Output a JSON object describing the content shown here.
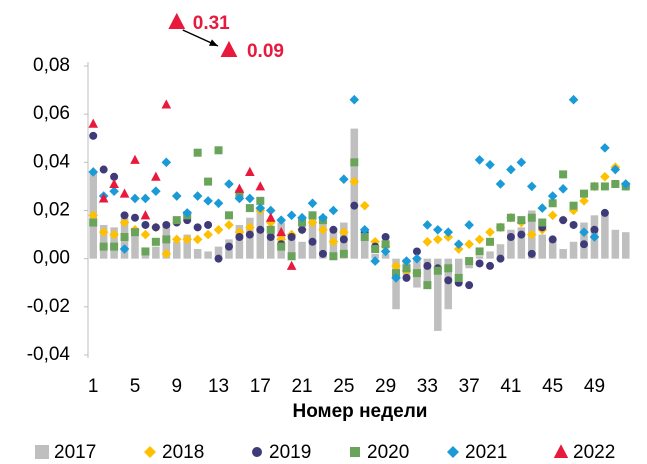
{
  "chart_data": {
    "type": "bar",
    "x_label": "Номер недели",
    "x": [
      1,
      2,
      3,
      4,
      5,
      6,
      7,
      8,
      9,
      10,
      11,
      12,
      13,
      14,
      15,
      16,
      17,
      18,
      19,
      20,
      21,
      22,
      23,
      24,
      25,
      26,
      27,
      28,
      29,
      30,
      31,
      32,
      33,
      34,
      35,
      36,
      37,
      38,
      39,
      40,
      41,
      42,
      43,
      44,
      45,
      46,
      47,
      48,
      49,
      50,
      51,
      52
    ],
    "xlim": [
      0.5,
      52.5
    ],
    "xticks": [
      1,
      5,
      9,
      13,
      17,
      21,
      25,
      29,
      33,
      37,
      41,
      45,
      49
    ],
    "ylim": [
      -0.04,
      0.08
    ],
    "yticks": [
      {
        "value": -0.04,
        "label": "-0,04"
      },
      {
        "value": -0.02,
        "label": "-0,02"
      },
      {
        "value": 0,
        "label": "0,00"
      },
      {
        "value": 0.02,
        "label": "0,02"
      },
      {
        "value": 0.04,
        "label": "0,04"
      },
      {
        "value": 0.06,
        "label": "0,06"
      },
      {
        "value": 0.08,
        "label": "0,08"
      }
    ],
    "grid": false,
    "legend": "bottom",
    "series": [
      {
        "name": "2017",
        "type": "bar",
        "marker": "square",
        "color": "#bfbfbf",
        "values": [
          0.036,
          0.014,
          0.013,
          0.017,
          0.011,
          0.004,
          0.005,
          0.014,
          0.007,
          0.01,
          0.004,
          0.003,
          0.005,
          0.008,
          0.014,
          0.017,
          0.02,
          0.011,
          0.015,
          0.01,
          0.007,
          0.018,
          0.015,
          0.012,
          0.015,
          0.054,
          0.009,
          0.002,
          0.002,
          -0.021,
          -0.008,
          -0.012,
          -0.01,
          -0.03,
          -0.021,
          -0.01,
          -0.004,
          0.001,
          0.003,
          0.006,
          0.012,
          0.013,
          0.02,
          0.01,
          0.008,
          0.004,
          0.007,
          0.015,
          0.018,
          0.019,
          0.012,
          0.011
        ]
      },
      {
        "name": "2018",
        "type": "scatter",
        "marker": "diamond",
        "color": "#ffc000",
        "values": [
          0.018,
          0.011,
          0.01,
          0.015,
          0.012,
          0.01,
          0.013,
          0.002,
          0.008,
          0.008,
          0.008,
          0.01,
          0.012,
          0.014,
          0.011,
          0.013,
          0.02,
          0.015,
          0.008,
          0.01,
          0.012,
          0.015,
          0.012,
          0.007,
          0.011,
          0.032,
          0.022,
          0.007,
          0.005,
          -0.003,
          -0.005,
          -0.006,
          0.007,
          0.008,
          0.009,
          0.004,
          0.006,
          0.008,
          0.011,
          0.013,
          0.017,
          0.015,
          0.01,
          0.012,
          0.018,
          0.016,
          0.02,
          0.024,
          0.03,
          0.034,
          0.038,
          0.031
        ]
      },
      {
        "name": "2019",
        "type": "scatter",
        "marker": "circle",
        "color": "#3f3a78",
        "values": [
          0.051,
          0.037,
          0.034,
          0.018,
          0.017,
          0.014,
          0.013,
          0.014,
          0.015,
          0.016,
          0.013,
          0.014,
          0.0,
          0.005,
          0.009,
          0.01,
          0.012,
          0.009,
          0.006,
          0.009,
          0.012,
          0.007,
          0.002,
          0.012,
          0.008,
          0.022,
          0.011,
          0.005,
          0.009,
          -0.007,
          -0.008,
          0.003,
          -0.003,
          -0.004,
          -0.009,
          -0.01,
          -0.011,
          -0.002,
          -0.003,
          0.0,
          0.009,
          0.01,
          0.002,
          0.013,
          0.008,
          0.016,
          0.014,
          0.006,
          0.012,
          0.019,
          0.031,
          0.03
        ]
      },
      {
        "name": "2020",
        "type": "scatter",
        "marker": "square",
        "color": "#6aa35a",
        "values": [
          0.015,
          0.005,
          0.005,
          0.009,
          0.011,
          0.003,
          0.007,
          0.008,
          0.016,
          0.018,
          0.044,
          0.032,
          0.045,
          0.018,
          0.027,
          0.021,
          0.024,
          0.012,
          0.005,
          0.001,
          0.015,
          0.018,
          0.016,
          0.001,
          0.002,
          0.04,
          0.009,
          0.004,
          0.006,
          -0.006,
          -0.004,
          -0.006,
          -0.011,
          -0.005,
          -0.004,
          -0.008,
          -0.001,
          0.003,
          0.007,
          0.013,
          0.017,
          0.016,
          0.017,
          0.015,
          0.023,
          0.035,
          0.022,
          0.027,
          0.03,
          0.03,
          0.031,
          0.03
        ]
      },
      {
        "name": "2021",
        "type": "scatter",
        "marker": "diamond",
        "color": "#1a9bd7",
        "values": [
          0.036,
          0.026,
          0.028,
          0.004,
          0.025,
          0.025,
          0.028,
          0.04,
          0.026,
          0.019,
          0.026,
          0.024,
          0.023,
          0.031,
          0.025,
          0.025,
          0.021,
          0.02,
          0.016,
          0.018,
          0.017,
          0.023,
          0.017,
          0.02,
          0.033,
          0.066,
          0.012,
          -0.001,
          0.003,
          -0.008,
          -0.001,
          0.0,
          0.014,
          0.012,
          0.011,
          0.006,
          0.014,
          0.041,
          0.039,
          0.031,
          0.037,
          0.04,
          0.03,
          0.021,
          0.026,
          0.029,
          0.066,
          0.011,
          0.009,
          0.046,
          0.037,
          0.031
        ]
      },
      {
        "name": "2022",
        "type": "scatter",
        "marker": "triangle",
        "color": "#e8193c",
        "values": [
          0.056,
          0.025,
          0.031,
          0.027,
          0.041,
          0.018,
          0.034,
          0.064,
          0.31,
          null,
          null,
          null,
          null,
          0.09,
          0.029,
          0.036,
          0.03,
          0.017,
          0.011,
          -0.003,
          null,
          null,
          null,
          null,
          null,
          null,
          null,
          null,
          null,
          null,
          null,
          null,
          null,
          null,
          null,
          null,
          null,
          null,
          null,
          null,
          null,
          null,
          null,
          null,
          null,
          null,
          null,
          null,
          null,
          null,
          null,
          null
        ],
        "value_labels": [
          null,
          null,
          null,
          null,
          null,
          null,
          null,
          null,
          "0.31",
          null,
          null,
          null,
          null,
          "0.09",
          null,
          null,
          null,
          null,
          null,
          null,
          null,
          null,
          null,
          null,
          null,
          null,
          null,
          null,
          null,
          null,
          null,
          null,
          null,
          null,
          null,
          null,
          null,
          null,
          null,
          null,
          null,
          null,
          null,
          null,
          null,
          null,
          null,
          null,
          null,
          null,
          null,
          null
        ]
      }
    ]
  }
}
